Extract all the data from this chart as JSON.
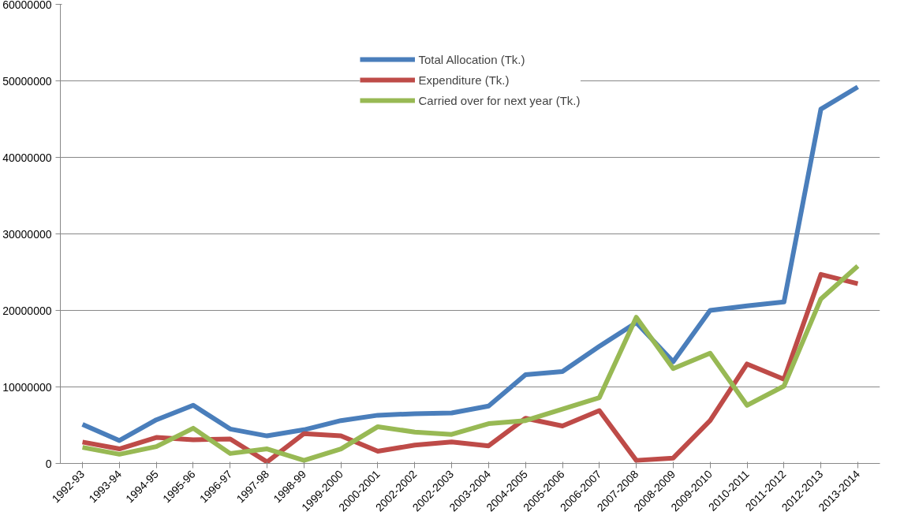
{
  "chart_data": {
    "type": "line",
    "categories": [
      "1992-93",
      "1993-94",
      "1994-95",
      "1995-96",
      "1996-97",
      "1997-98",
      "1998-99",
      "1999-2000",
      "2000-2001",
      "2002-2002",
      "2002-2003",
      "2003-2004",
      "2004-2005",
      "2005-2006",
      "2006-2007",
      "2007-2008",
      "2008-2009",
      "2009-2010",
      "2010-2011",
      "2011-2012",
      "2012-2013",
      "2013-2014"
    ],
    "series": [
      {
        "name": "Total Allocation (Tk.)",
        "color": "#4a7ebb",
        "values": [
          5100000,
          3000000,
          5700000,
          7600000,
          4500000,
          3600000,
          4400000,
          5600000,
          6300000,
          6500000,
          6600000,
          7500000,
          11600000,
          12000000,
          15300000,
          18400000,
          13300000,
          20000000,
          20600000,
          21100000,
          46300000,
          49200000
        ]
      },
      {
        "name": "Expenditure (Tk.)",
        "color": "#be4b48",
        "values": [
          2800000,
          1900000,
          3400000,
          3100000,
          3200000,
          200000,
          3900000,
          3600000,
          1600000,
          2400000,
          2800000,
          2300000,
          5900000,
          4900000,
          6900000,
          400000,
          700000,
          5600000,
          13000000,
          11000000,
          24700000,
          23500000
        ]
      },
      {
        "name": "Carried over for next year (Tk.)",
        "color": "#98b954",
        "values": [
          2100000,
          1200000,
          2200000,
          4600000,
          1300000,
          1900000,
          400000,
          1900000,
          4800000,
          4100000,
          3800000,
          5200000,
          5600000,
          7100000,
          8600000,
          19100000,
          12400000,
          14400000,
          7600000,
          10100000,
          21500000,
          25800000
        ]
      }
    ],
    "ylim": [
      0,
      60000000
    ],
    "yticks": [
      0,
      10000000,
      20000000,
      30000000,
      40000000,
      50000000,
      60000000
    ],
    "grid": "y",
    "legend": "top",
    "marker": "none",
    "line_style": "solid"
  }
}
